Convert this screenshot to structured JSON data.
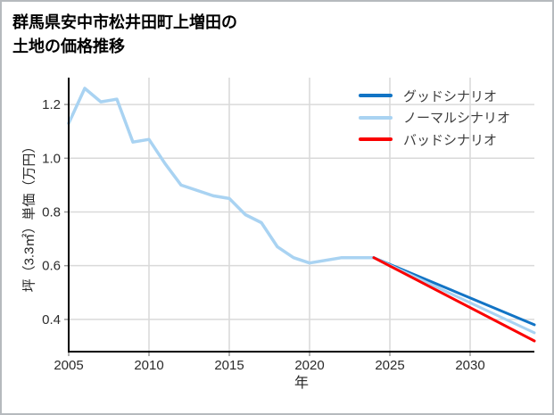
{
  "title": {
    "line1": "群馬県安中市松井田町上増田の",
    "line2": "土地の価格推移"
  },
  "chart_data": {
    "type": "line",
    "title": "群馬県安中市松井田町上増田の土地の価格推移",
    "xlabel": "年",
    "ylabel": "坪（3.3㎡）単価（万円）",
    "x_range": [
      2005,
      2034
    ],
    "y_range": [
      0.28,
      1.3
    ],
    "x_ticks": [
      2005,
      2010,
      2015,
      2020,
      2025,
      2030
    ],
    "y_ticks": [
      0.4,
      0.6,
      0.8,
      1.0,
      1.2
    ],
    "grid": true,
    "legend_position": "top-right",
    "series": [
      {
        "id": "history",
        "color": "#a9d3f2",
        "width": 3.5,
        "x": [
          2005,
          2006,
          2007,
          2008,
          2009,
          2010,
          2011,
          2012,
          2013,
          2014,
          2015,
          2016,
          2017,
          2018,
          2019,
          2020,
          2021,
          2022,
          2023,
          2024
        ],
        "values": [
          1.13,
          1.26,
          1.21,
          1.22,
          1.06,
          1.07,
          0.98,
          0.9,
          0.88,
          0.86,
          0.85,
          0.79,
          0.76,
          0.67,
          0.63,
          0.61,
          0.62,
          0.63,
          0.63,
          0.63
        ]
      },
      {
        "id": "good-scenario",
        "color": "#1274c5",
        "width": 3,
        "x": [
          2024,
          2034
        ],
        "values": [
          0.63,
          0.38
        ]
      },
      {
        "id": "normal-scenario",
        "color": "#a9d3f2",
        "width": 3,
        "x": [
          2024,
          2034
        ],
        "values": [
          0.63,
          0.35
        ]
      },
      {
        "id": "bad-scenario",
        "color": "#fa0000",
        "width": 3,
        "x": [
          2024,
          2034
        ],
        "values": [
          0.63,
          0.32
        ]
      }
    ],
    "legend": [
      {
        "label": "グッドシナリオ",
        "color": "#1274c5"
      },
      {
        "label": "ノーマルシナリオ",
        "color": "#a9d3f2"
      },
      {
        "label": "バッドシナリオ",
        "color": "#fa0000"
      }
    ]
  },
  "style_colors": {
    "grid": "#d9d9d9",
    "axis": "#000000",
    "tick": "#9a9a9a",
    "tick_label": "#2b2b2b"
  }
}
